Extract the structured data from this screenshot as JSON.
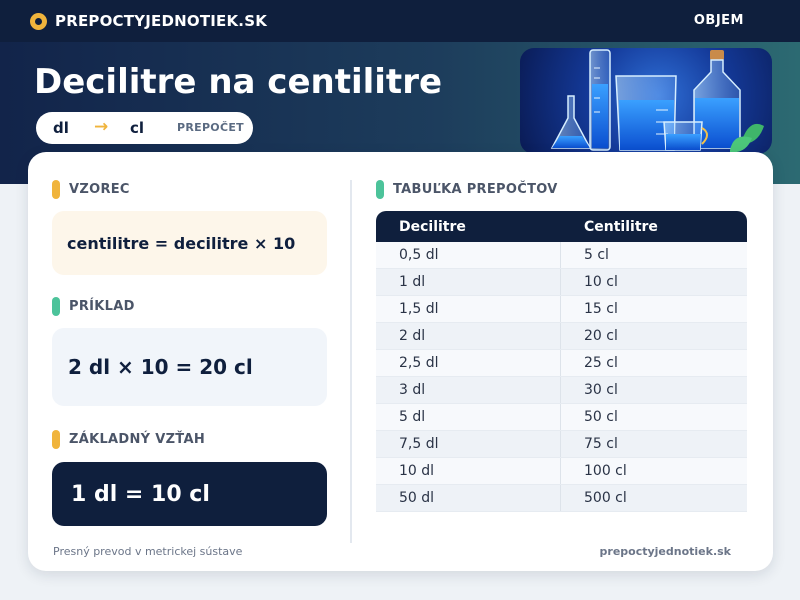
{
  "header": {
    "site_name": "PREPOCTYJEDNOTIEK.SK",
    "nav_link": "OBJEM"
  },
  "hero": {
    "title": "Decilitre na centilitre",
    "pill": {
      "from": "dl",
      "arrow": "→",
      "to": "cl",
      "tag": "PREPOČET"
    },
    "image_icon": "lab-glassware-image"
  },
  "left_panel": {
    "formula": {
      "label": "VZOREC",
      "text": "centilitre = decilitre × 10"
    },
    "example": {
      "label": "PRÍKLAD",
      "text": "2 dl × 10 = 20 cl"
    },
    "basic": {
      "label": "ZÁKLADNÝ VZŤAH",
      "text": "1 dl = 10 cl"
    }
  },
  "table": {
    "label": "TABUĽKA PREPOČTOV",
    "columns": [
      "Decilitre",
      "Centilitre"
    ],
    "rows": [
      [
        "0,5 dl",
        "5 cl"
      ],
      [
        "1 dl",
        "10 cl"
      ],
      [
        "1,5 dl",
        "15 cl"
      ],
      [
        "2 dl",
        "20 cl"
      ],
      [
        "2,5 dl",
        "25 cl"
      ],
      [
        "3 dl",
        "30 cl"
      ],
      [
        "5 dl",
        "50 cl"
      ],
      [
        "7,5 dl",
        "75 cl"
      ],
      [
        "10 dl",
        "100 cl"
      ],
      [
        "50 dl",
        "500 cl"
      ]
    ]
  },
  "footer": {
    "left": "Presný prevod v metrickej sústave",
    "right": "prepoctyjednotiek.sk"
  },
  "colors": {
    "navy": "#0f1f3d",
    "accent_yellow": "#f0b43c",
    "accent_green": "#4cc39a"
  }
}
